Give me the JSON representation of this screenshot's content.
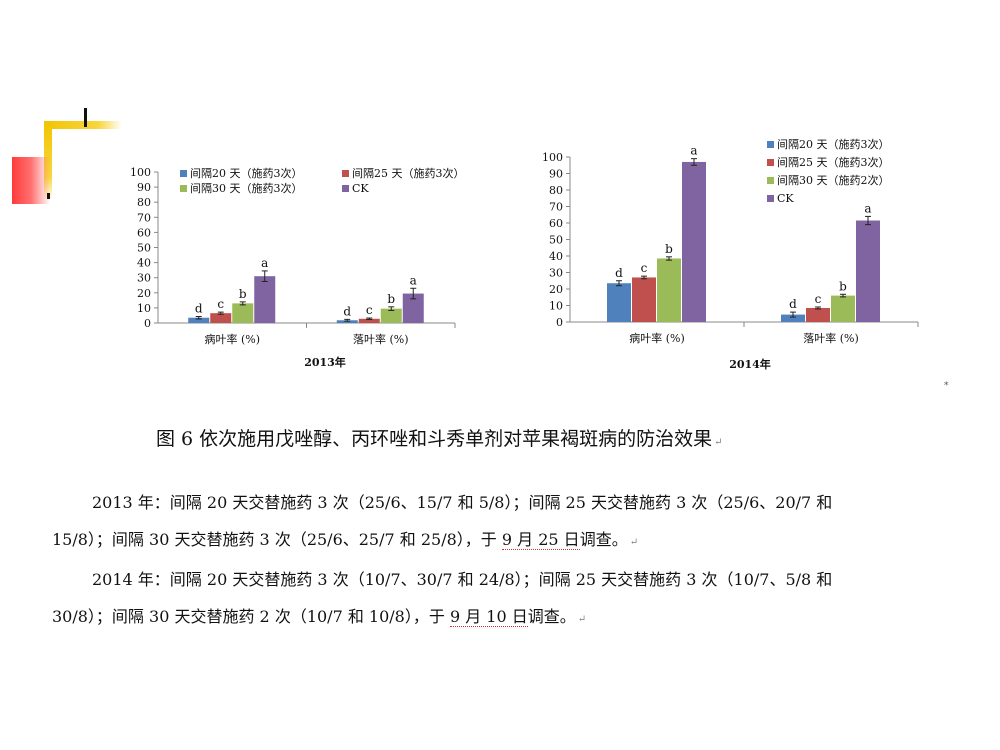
{
  "colors": {
    "s1": "#4f81bd",
    "s2": "#c0504d",
    "s3": "#9bbb59",
    "s4": "#8064a2"
  },
  "chart_data": [
    {
      "type": "bar",
      "title": "2013年",
      "categories": [
        "病叶率 (%)",
        "落叶率 (%)"
      ],
      "ylim": [
        0,
        100
      ],
      "yticks": [
        0,
        10,
        20,
        30,
        40,
        50,
        60,
        70,
        80,
        90,
        100
      ],
      "grid": false,
      "legend_position": "top",
      "series": [
        {
          "name": "间隔20 天（施药3次）",
          "values": [
            3.5,
            1.8
          ],
          "errors": [
            0.8,
            0.6
          ],
          "letters": [
            "d",
            "d"
          ]
        },
        {
          "name": "间隔25 天（施药3次）",
          "values": [
            6.5,
            2.8
          ],
          "errors": [
            0.7,
            0.5
          ],
          "letters": [
            "c",
            "c"
          ]
        },
        {
          "name": "间隔30 天（施药3次）",
          "values": [
            13.0,
            9.5
          ],
          "errors": [
            1.0,
            1.2
          ],
          "letters": [
            "b",
            "b"
          ]
        },
        {
          "name": "CK",
          "values": [
            31.0,
            19.5
          ],
          "errors": [
            3.5,
            3.5
          ],
          "letters": [
            "a",
            "a"
          ]
        }
      ]
    },
    {
      "type": "bar",
      "title": "2014年",
      "categories": [
        "病叶率 (%)",
        "落叶率 (%)"
      ],
      "ylim": [
        0,
        100
      ],
      "yticks": [
        0,
        10,
        20,
        30,
        40,
        50,
        60,
        70,
        80,
        90,
        100
      ],
      "grid": false,
      "legend_position": "top-right",
      "series": [
        {
          "name": "间隔20 天（施药3次）",
          "values": [
            23.5,
            4.5
          ],
          "errors": [
            1.5,
            1.5
          ],
          "letters": [
            "d",
            "d"
          ]
        },
        {
          "name": "间隔25 天（施药3次）",
          "values": [
            27.0,
            8.5
          ],
          "errors": [
            0.8,
            0.6
          ],
          "letters": [
            "c",
            "c"
          ]
        },
        {
          "name": "间隔30 天（施药2次）",
          "values": [
            38.5,
            16.0
          ],
          "errors": [
            1.0,
            0.8
          ],
          "letters": [
            "b",
            "b"
          ]
        },
        {
          "name": "CK",
          "values": [
            97.0,
            61.5
          ],
          "errors": [
            2.0,
            2.5
          ],
          "letters": [
            "a",
            "a"
          ]
        }
      ]
    }
  ],
  "figure": {
    "caption": "图 6  依次施用戊唑醇、丙环唑和斗秀单剂对苹果褐斑病的防治效果",
    "enter_mark": "↵",
    "paragraph_mark": "⁎"
  },
  "notes": {
    "p2013_line1": "2013 年：间隔 20 天交替施药 3 次（25/6、15/7 和 5/8）；间隔 25 天交替施药 3 次（25/6、20/7 和",
    "p2013_line2_a": "15/8）；间隔 30 天交替施药 3 次（25/6、25/7 和 25/8），于 ",
    "p2013_line2_date": "9 月 25 日",
    "p2013_line2_b": "调查。",
    "p2014_line1": "2014 年：间隔 20 天交替施药 3 次（10/7、30/7 和 24/8）；间隔 25 天交替施药 3 次（10/7、5/8 和",
    "p2014_line2_a": "30/8）；间隔 30 天交替施药 2 次（10/7 和 10/8），于 ",
    "p2014_line2_date": "9 月 10 日",
    "p2014_line2_b": "调查。"
  }
}
